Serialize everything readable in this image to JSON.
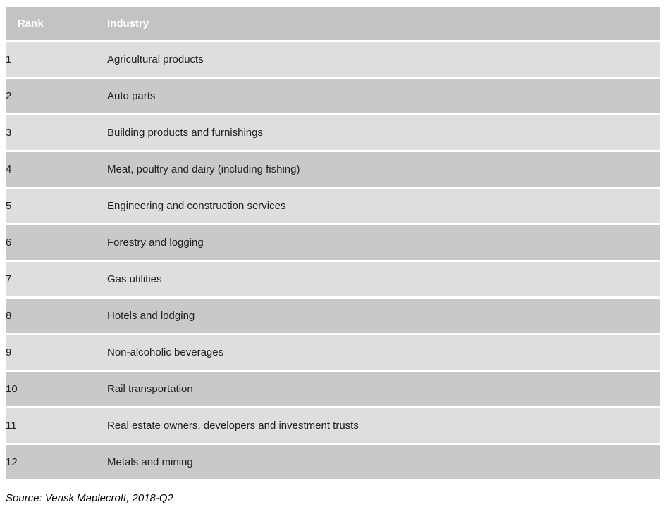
{
  "chart_data": {
    "type": "table",
    "columns": [
      "Rank",
      "Industry"
    ],
    "rows": [
      {
        "rank": "1",
        "industry": "Agricultural products"
      },
      {
        "rank": "2",
        "industry": "Auto parts"
      },
      {
        "rank": "3",
        "industry": "Building products and furnishings"
      },
      {
        "rank": "4",
        "industry": "Meat, poultry and dairy (including fishing)"
      },
      {
        "rank": "5",
        "industry": "Engineering and construction services"
      },
      {
        "rank": "6",
        "industry": "Forestry and logging"
      },
      {
        "rank": "7",
        "industry": "Gas utilities"
      },
      {
        "rank": "8",
        "industry": "Hotels and lodging"
      },
      {
        "rank": "9",
        "industry": "Non-alcoholic beverages"
      },
      {
        "rank": "10",
        "industry": "Rail transportation"
      },
      {
        "rank": "11",
        "industry": "Real estate owners, developers and investment trusts"
      },
      {
        "rank": "12",
        "industry": "Metals and mining"
      }
    ],
    "source_note": "Source: Verisk Maplecroft, 2018-Q2",
    "layout": {
      "header_row_shaded": true,
      "alternating_rows": true
    }
  },
  "colors": {
    "header_bg": "#c3c3c3",
    "header_text": "#ffffff",
    "row_light_bg": "#dedede",
    "row_dark_bg": "#c9c9c9",
    "row_separator": "#ffffff",
    "body_text": "#212121",
    "source_text": "#000000"
  }
}
